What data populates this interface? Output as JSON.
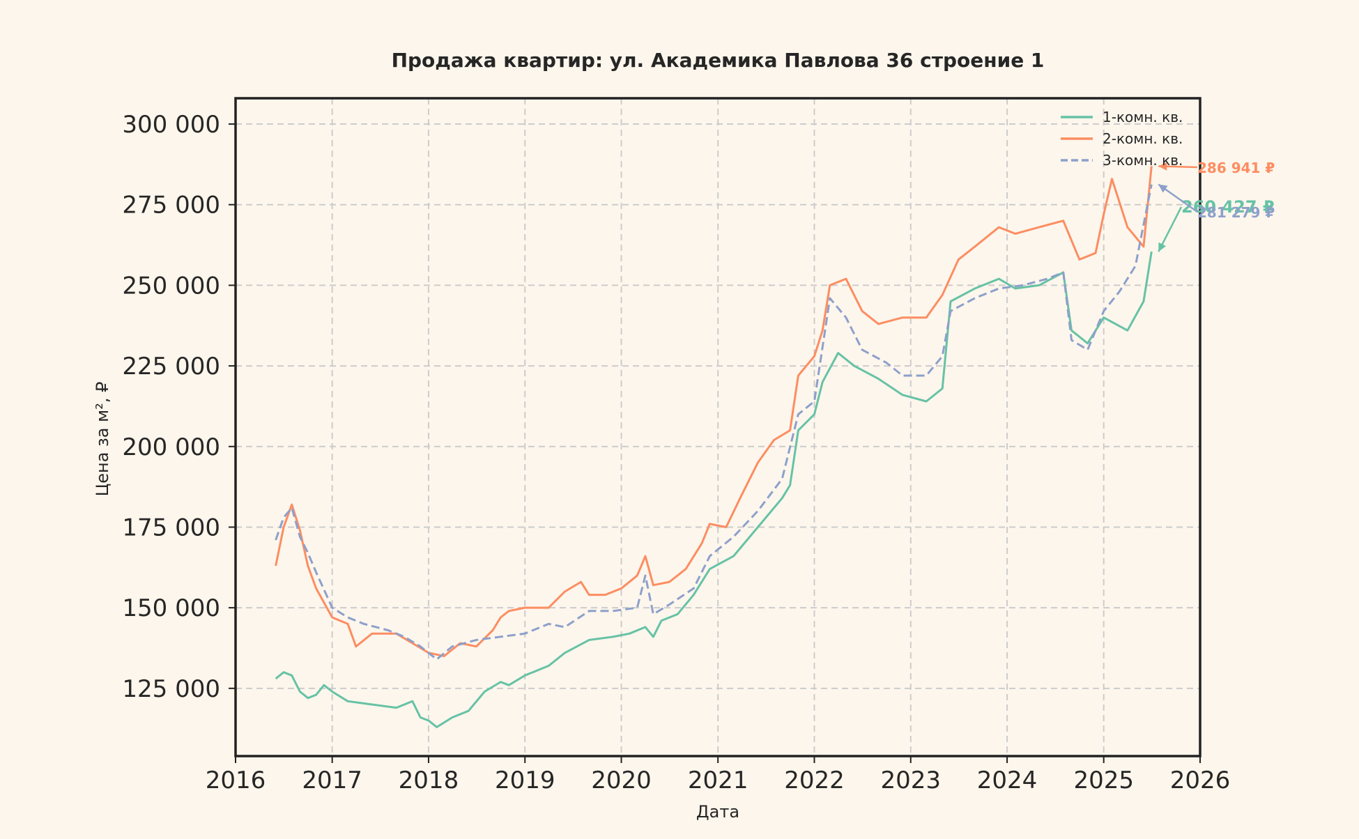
{
  "colors": {
    "background": "#fdf6ec",
    "axis": "#222222",
    "grid": "#cccccc",
    "text": "#262626"
  },
  "chart_data": {
    "type": "line",
    "title": "Продажа квартир: ул. Академика Павлова 36 строение 1",
    "xlabel": "Дата",
    "ylabel": "Цена за м², ₽",
    "xlim": [
      "2016-01-01",
      "2026-01-01"
    ],
    "ylim": [
      104000,
      308000
    ],
    "x_ticks": [
      "2016",
      "2017",
      "2018",
      "2019",
      "2020",
      "2021",
      "2022",
      "2023",
      "2024",
      "2025",
      "2026"
    ],
    "y_ticks": [
      125000,
      150000,
      175000,
      200000,
      225000,
      250000,
      275000,
      300000
    ],
    "y_tick_labels": [
      "125 000",
      "150 000",
      "175 000",
      "200 000",
      "225 000",
      "250 000",
      "275 000",
      "300 000"
    ],
    "grid": true,
    "legend_position": "top-right",
    "series": [
      {
        "name": "1-комн. кв.",
        "color": "#66c2a5",
        "style": "solid",
        "end_label": "260 427 ₽",
        "points": [
          [
            "2016-06-01",
            128000
          ],
          [
            "2016-07-01",
            130000
          ],
          [
            "2016-08-01",
            129000
          ],
          [
            "2016-09-01",
            124000
          ],
          [
            "2016-10-01",
            122000
          ],
          [
            "2016-11-01",
            123000
          ],
          [
            "2016-12-01",
            126000
          ],
          [
            "2017-01-01",
            124000
          ],
          [
            "2017-03-01",
            121000
          ],
          [
            "2017-06-01",
            120000
          ],
          [
            "2017-09-01",
            119000
          ],
          [
            "2017-11-01",
            121000
          ],
          [
            "2017-12-01",
            116000
          ],
          [
            "2018-01-01",
            115000
          ],
          [
            "2018-02-01",
            113000
          ],
          [
            "2018-04-01",
            116000
          ],
          [
            "2018-06-01",
            118000
          ],
          [
            "2018-08-01",
            124000
          ],
          [
            "2018-10-01",
            127000
          ],
          [
            "2018-11-01",
            126000
          ],
          [
            "2019-01-01",
            129000
          ],
          [
            "2019-04-01",
            132000
          ],
          [
            "2019-06-01",
            136000
          ],
          [
            "2019-09-01",
            140000
          ],
          [
            "2019-12-01",
            141000
          ],
          [
            "2020-02-01",
            142000
          ],
          [
            "2020-04-01",
            144000
          ],
          [
            "2020-05-01",
            141000
          ],
          [
            "2020-06-01",
            146000
          ],
          [
            "2020-08-01",
            148000
          ],
          [
            "2020-10-01",
            154000
          ],
          [
            "2020-12-01",
            162000
          ],
          [
            "2021-03-01",
            166000
          ],
          [
            "2021-06-01",
            175000
          ],
          [
            "2021-09-01",
            184000
          ],
          [
            "2021-10-01",
            188000
          ],
          [
            "2021-11-01",
            205000
          ],
          [
            "2022-01-01",
            210000
          ],
          [
            "2022-02-01",
            220000
          ],
          [
            "2022-04-01",
            229000
          ],
          [
            "2022-06-01",
            225000
          ],
          [
            "2022-09-01",
            221000
          ],
          [
            "2022-12-01",
            216000
          ],
          [
            "2023-03-01",
            214000
          ],
          [
            "2023-05-01",
            218000
          ],
          [
            "2023-06-01",
            245000
          ],
          [
            "2023-09-01",
            249000
          ],
          [
            "2023-12-01",
            252000
          ],
          [
            "2024-02-01",
            249000
          ],
          [
            "2024-05-01",
            250000
          ],
          [
            "2024-08-01",
            254000
          ],
          [
            "2024-09-01",
            236000
          ],
          [
            "2024-11-01",
            232000
          ],
          [
            "2025-01-01",
            240000
          ],
          [
            "2025-04-01",
            236000
          ],
          [
            "2025-06-01",
            245000
          ],
          [
            "2025-07-01",
            260427
          ]
        ]
      },
      {
        "name": "2-комн. кв.",
        "color": "#fc8d62",
        "style": "solid",
        "end_label": "286 941 ₽",
        "points": [
          [
            "2016-06-01",
            163000
          ],
          [
            "2016-07-01",
            175000
          ],
          [
            "2016-08-01",
            182000
          ],
          [
            "2016-09-01",
            174000
          ],
          [
            "2016-10-01",
            163000
          ],
          [
            "2016-11-01",
            156000
          ],
          [
            "2017-01-01",
            147000
          ],
          [
            "2017-03-01",
            145000
          ],
          [
            "2017-04-01",
            138000
          ],
          [
            "2017-06-01",
            142000
          ],
          [
            "2017-09-01",
            142000
          ],
          [
            "2017-11-01",
            139000
          ],
          [
            "2018-01-01",
            136000
          ],
          [
            "2018-03-01",
            135000
          ],
          [
            "2018-05-01",
            139000
          ],
          [
            "2018-07-01",
            138000
          ],
          [
            "2018-09-01",
            143000
          ],
          [
            "2018-10-01",
            147000
          ],
          [
            "2018-11-01",
            149000
          ],
          [
            "2019-01-01",
            150000
          ],
          [
            "2019-04-01",
            150000
          ],
          [
            "2019-06-01",
            155000
          ],
          [
            "2019-08-01",
            158000
          ],
          [
            "2019-09-01",
            154000
          ],
          [
            "2019-11-01",
            154000
          ],
          [
            "2020-01-01",
            156000
          ],
          [
            "2020-03-01",
            160000
          ],
          [
            "2020-04-01",
            166000
          ],
          [
            "2020-05-01",
            157000
          ],
          [
            "2020-07-01",
            158000
          ],
          [
            "2020-09-01",
            162000
          ],
          [
            "2020-11-01",
            170000
          ],
          [
            "2020-12-01",
            176000
          ],
          [
            "2021-02-01",
            175000
          ],
          [
            "2021-04-01",
            185000
          ],
          [
            "2021-06-01",
            195000
          ],
          [
            "2021-08-01",
            202000
          ],
          [
            "2021-10-01",
            205000
          ],
          [
            "2021-11-01",
            222000
          ],
          [
            "2022-01-01",
            228000
          ],
          [
            "2022-02-01",
            236000
          ],
          [
            "2022-03-01",
            250000
          ],
          [
            "2022-05-01",
            252000
          ],
          [
            "2022-07-01",
            242000
          ],
          [
            "2022-09-01",
            238000
          ],
          [
            "2022-12-01",
            240000
          ],
          [
            "2023-03-01",
            240000
          ],
          [
            "2023-05-01",
            247000
          ],
          [
            "2023-07-01",
            258000
          ],
          [
            "2023-09-01",
            262000
          ],
          [
            "2023-12-01",
            268000
          ],
          [
            "2024-02-01",
            266000
          ],
          [
            "2024-05-01",
            268000
          ],
          [
            "2024-08-01",
            270000
          ],
          [
            "2024-10-01",
            258000
          ],
          [
            "2024-12-01",
            260000
          ],
          [
            "2025-01-01",
            272000
          ],
          [
            "2025-02-01",
            283000
          ],
          [
            "2025-04-01",
            268000
          ],
          [
            "2025-06-01",
            262000
          ],
          [
            "2025-07-01",
            286941
          ]
        ]
      },
      {
        "name": "3-комн. кв.",
        "color": "#8da0cb",
        "style": "dashed",
        "end_label": "281 279 ₽",
        "points": [
          [
            "2016-06-01",
            171000
          ],
          [
            "2016-07-01",
            178000
          ],
          [
            "2016-08-01",
            181000
          ],
          [
            "2016-09-01",
            172000
          ],
          [
            "2016-10-01",
            167000
          ],
          [
            "2016-11-01",
            161000
          ],
          [
            "2017-01-01",
            150000
          ],
          [
            "2017-03-01",
            147000
          ],
          [
            "2017-05-01",
            145000
          ],
          [
            "2017-08-01",
            143000
          ],
          [
            "2017-10-01",
            141000
          ],
          [
            "2017-12-01",
            138000
          ],
          [
            "2018-02-01",
            134000
          ],
          [
            "2018-04-01",
            138000
          ],
          [
            "2018-07-01",
            140000
          ],
          [
            "2018-10-01",
            141000
          ],
          [
            "2019-01-01",
            142000
          ],
          [
            "2019-04-01",
            145000
          ],
          [
            "2019-06-01",
            144000
          ],
          [
            "2019-09-01",
            149000
          ],
          [
            "2019-12-01",
            149000
          ],
          [
            "2020-03-01",
            150000
          ],
          [
            "2020-04-01",
            160000
          ],
          [
            "2020-05-01",
            148000
          ],
          [
            "2020-07-01",
            151000
          ],
          [
            "2020-10-01",
            156000
          ],
          [
            "2020-12-01",
            166000
          ],
          [
            "2021-03-01",
            172000
          ],
          [
            "2021-06-01",
            180000
          ],
          [
            "2021-09-01",
            190000
          ],
          [
            "2021-11-01",
            210000
          ],
          [
            "2022-01-01",
            214000
          ],
          [
            "2022-03-01",
            246000
          ],
          [
            "2022-05-01",
            240000
          ],
          [
            "2022-07-01",
            230000
          ],
          [
            "2022-10-01",
            226000
          ],
          [
            "2022-12-01",
            222000
          ],
          [
            "2023-03-01",
            222000
          ],
          [
            "2023-05-01",
            228000
          ],
          [
            "2023-06-01",
            242000
          ],
          [
            "2023-09-01",
            246000
          ],
          [
            "2023-12-01",
            249000
          ],
          [
            "2024-03-01",
            250000
          ],
          [
            "2024-06-01",
            252000
          ],
          [
            "2024-08-01",
            254000
          ],
          [
            "2024-09-01",
            233000
          ],
          [
            "2024-11-01",
            230000
          ],
          [
            "2025-01-01",
            242000
          ],
          [
            "2025-03-01",
            248000
          ],
          [
            "2025-05-01",
            256000
          ],
          [
            "2025-07-01",
            281279
          ]
        ]
      }
    ]
  }
}
